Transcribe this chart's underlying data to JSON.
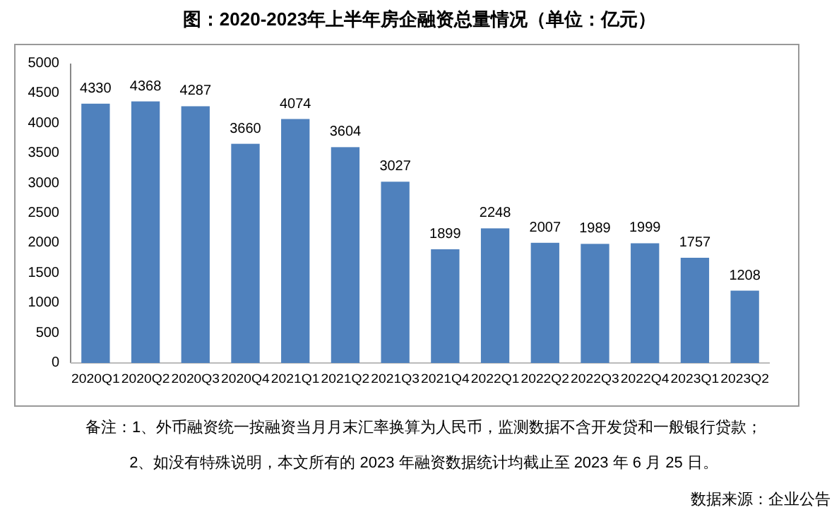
{
  "chart_data": {
    "type": "bar",
    "title": "图：2020-2023年上半年房企融资总量情况（单位：亿元）",
    "categories": [
      "2020Q1",
      "2020Q2",
      "2020Q3",
      "2020Q4",
      "2021Q1",
      "2021Q2",
      "2021Q3",
      "2021Q4",
      "2022Q1",
      "2022Q2",
      "2022Q3",
      "2022Q4",
      "2023Q1",
      "2023Q2"
    ],
    "values": [
      4330,
      4368,
      4287,
      3660,
      4074,
      3604,
      3027,
      1899,
      2248,
      2007,
      1989,
      1999,
      1757,
      1208
    ],
    "color": "#4f81bd",
    "ylim": [
      0,
      5000
    ],
    "yticks": [
      0,
      500,
      1000,
      1500,
      2000,
      2500,
      3000,
      3500,
      4000,
      4500,
      5000
    ],
    "data_labels": true,
    "annotations": [
      "备注：1、外币融资统一按融资当月月末汇率换算为人民币，监测数据不含开发贷和一般银行贷款；",
      "2、如没有特殊说明，本文所有的 2023 年融资数据统计均截止至 2023 年 6 月 25 日。",
      "数据来源：企业公告"
    ]
  }
}
